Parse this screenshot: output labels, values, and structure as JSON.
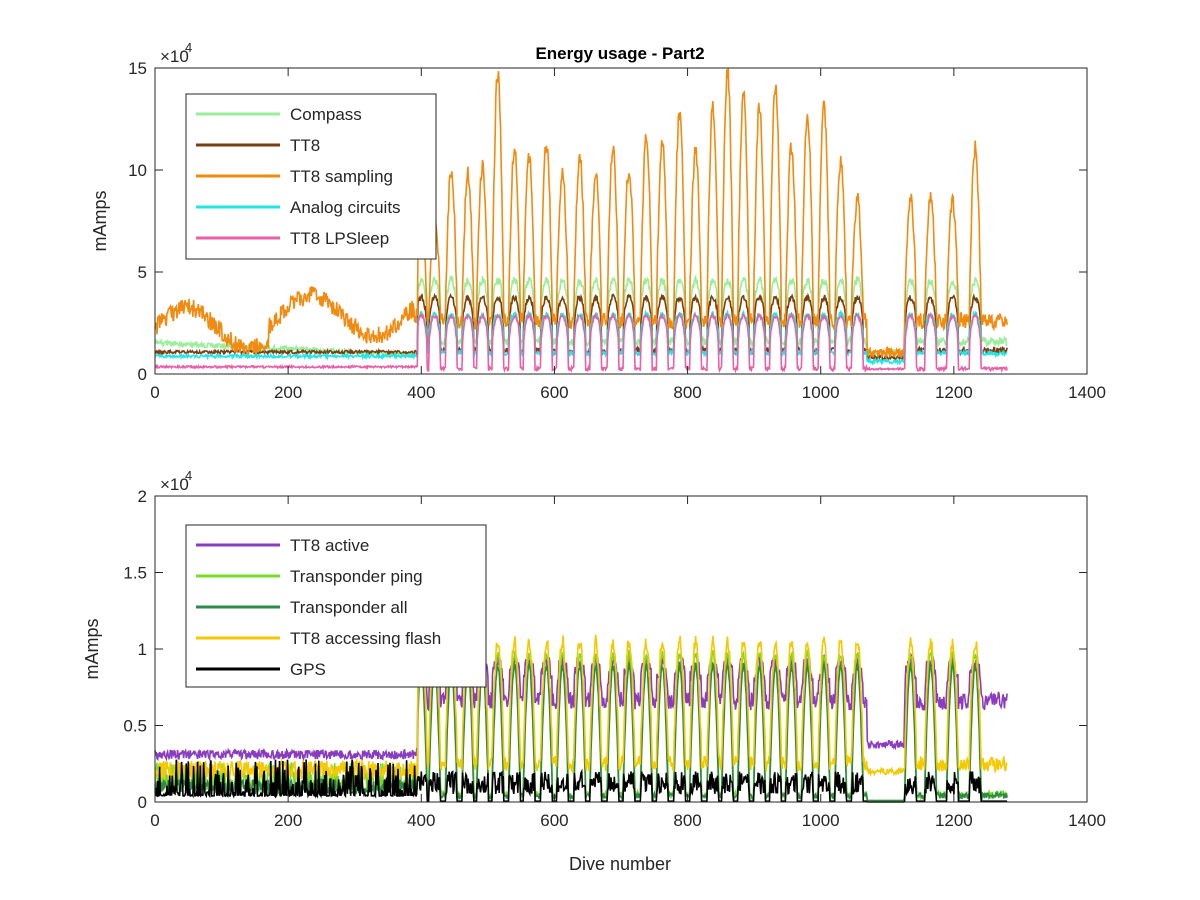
{
  "figure": {
    "title": "Energy usage - Part2",
    "xlabel": "Dive number"
  },
  "chart_data": [
    {
      "type": "line",
      "title": "Energy usage - Part2",
      "xlabel": "",
      "ylabel": "mAmps",
      "y_exponent_label": "×10",
      "y_exponent_power": "4",
      "xlim": [
        0,
        1400
      ],
      "ylim": [
        0,
        15
      ],
      "xticks": [
        0,
        200,
        400,
        600,
        800,
        1000,
        1200,
        1400
      ],
      "xtick_labels": [
        "0",
        "200",
        "400",
        "600",
        "800",
        "1000",
        "1200",
        "1400"
      ],
      "yticks": [
        0,
        5,
        10,
        15
      ],
      "ytick_labels": [
        "0",
        "5",
        "10",
        "15"
      ],
      "grid": false,
      "legend_position": "top-left",
      "series": [
        {
          "name": "Compass",
          "color": "#99ee99",
          "key": "compass"
        },
        {
          "name": "TT8",
          "color": "#7a3e10",
          "key": "tt8"
        },
        {
          "name": "TT8 sampling",
          "color": "#f28a10",
          "key": "tt8samp"
        },
        {
          "name": "Analog circuits",
          "color": "#22e6e6",
          "key": "analog"
        },
        {
          "name": "TT8 LPSleep",
          "color": "#e860a8",
          "key": "lpsleep"
        }
      ]
    },
    {
      "type": "line",
      "title": "",
      "xlabel": "Dive number",
      "ylabel": "mAmps",
      "y_exponent_label": "×10",
      "y_exponent_power": "4",
      "xlim": [
        0,
        1400
      ],
      "ylim": [
        0,
        2
      ],
      "xticks": [
        0,
        200,
        400,
        600,
        800,
        1000,
        1200,
        1400
      ],
      "xtick_labels": [
        "0",
        "200",
        "400",
        "600",
        "800",
        "1000",
        "1200",
        "1400"
      ],
      "yticks": [
        0,
        0.5,
        1,
        1.5,
        2
      ],
      "ytick_labels": [
        "0",
        "0.5",
        "1",
        "1.5",
        "2"
      ],
      "grid": false,
      "legend_position": "top-left",
      "series": [
        {
          "name": "TT8 active",
          "color": "#8a3cc0",
          "key": "active"
        },
        {
          "name": "Transponder ping",
          "color": "#77dd22",
          "key": "ping"
        },
        {
          "name": "Transponder all",
          "color": "#2e8a4a",
          "key": "tall"
        },
        {
          "name": "TT8 accessing flash",
          "color": "#f5c800",
          "key": "flash"
        },
        {
          "name": "GPS",
          "color": "#000000",
          "key": "gps"
        }
      ]
    }
  ]
}
